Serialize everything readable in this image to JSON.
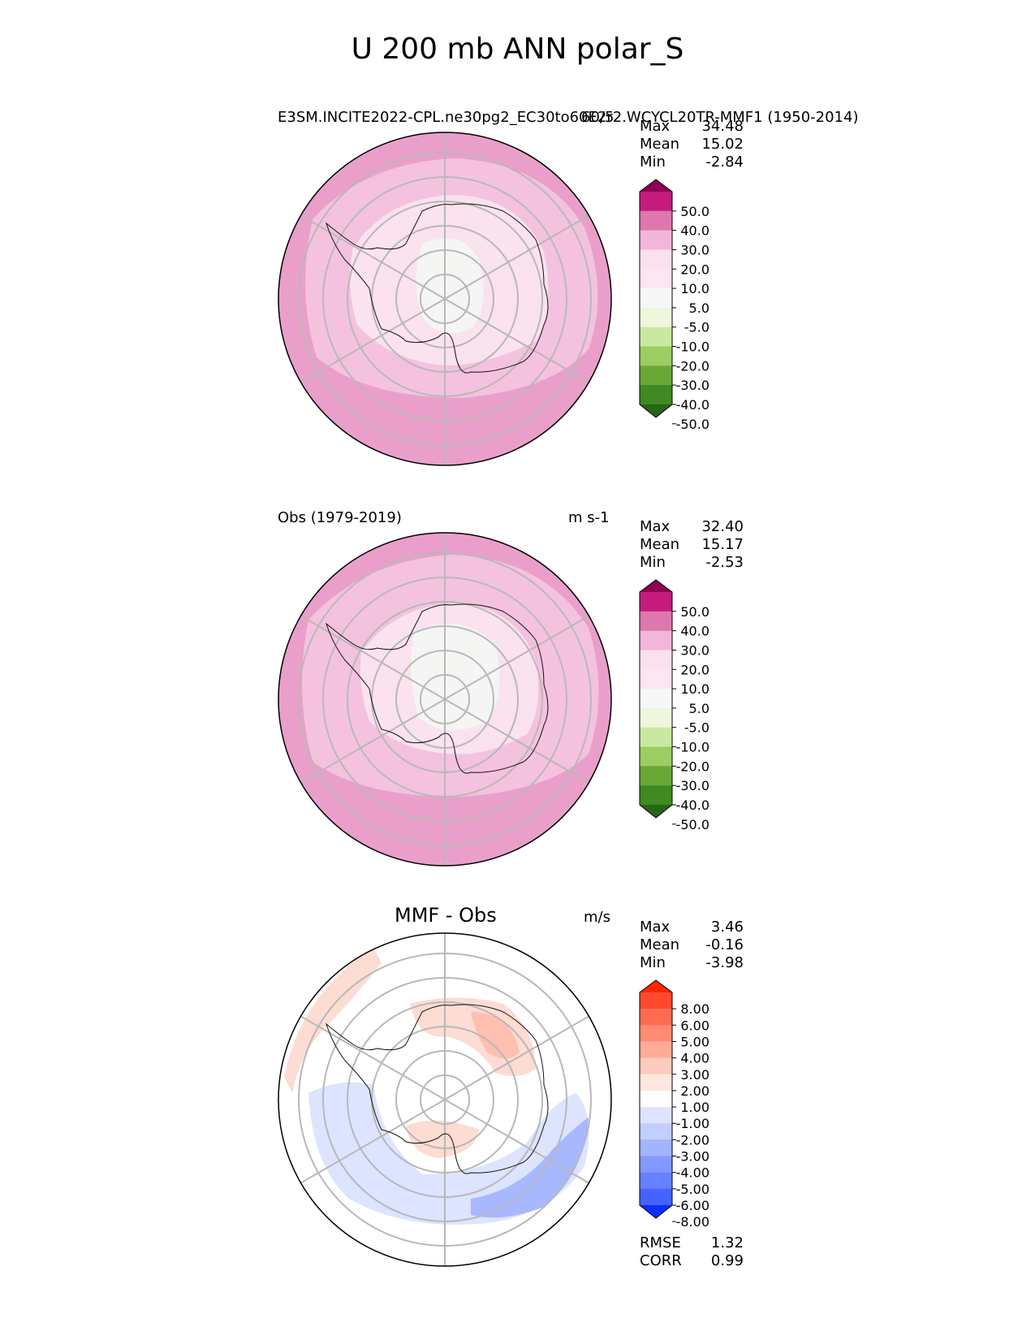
{
  "title": "U 200 mb ANN polar_S",
  "panels": [
    {
      "id": "model",
      "left_label": "E3SM.INCITE2022-CPL.ne30pg2_EC30to60E2r2.WCYCL20TR-MMF1 (1950-2014)",
      "right_label": "60/5",
      "stats": [
        {
          "label": "Max",
          "value": "34.48"
        },
        {
          "label": "Mean",
          "value": "15.02"
        },
        {
          "label": "Min",
          "value": "-2.84"
        }
      ]
    },
    {
      "id": "obs",
      "left_label": "Obs (1979-2019)",
      "right_label": "m s-1",
      "stats": [
        {
          "label": "Max",
          "value": "32.40"
        },
        {
          "label": "Mean",
          "value": "15.17"
        },
        {
          "label": "Min",
          "value": "-2.53"
        }
      ]
    },
    {
      "id": "diff",
      "center_label": "MMF - Obs",
      "right_label": "m/s",
      "stats": [
        {
          "label": "Max",
          "value": "3.46"
        },
        {
          "label": "Mean",
          "value": "-0.16"
        },
        {
          "label": "Min",
          "value": "-3.98"
        }
      ],
      "metrics": [
        {
          "label": "RMSE",
          "value": "1.32"
        },
        {
          "label": "CORR",
          "value": "0.99"
        }
      ]
    }
  ],
  "colorbars": {
    "field": {
      "ticks": [
        "50.0",
        "40.0",
        "30.0",
        "20.0",
        "10.0",
        "5.0",
        "-5.0",
        "-10.0",
        "-20.0",
        "-30.0",
        "-40.0",
        "-50.0"
      ],
      "colors": [
        "#8e0152",
        "#c51b7d",
        "#de77ae",
        "#f1b6da",
        "#fde0ef",
        "#fce7f1",
        "#f7f7f7",
        "#eef6dc",
        "#c9e8a0",
        "#9ccd62",
        "#6aa836",
        "#3f8a22",
        "#276419"
      ]
    },
    "diff": {
      "ticks": [
        "8.00",
        "6.00",
        "5.00",
        "4.00",
        "3.00",
        "2.00",
        "1.00",
        "-1.00",
        "-2.00",
        "-3.00",
        "-4.00",
        "-5.00",
        "-6.00",
        "-8.00"
      ],
      "colors": [
        "#ff2600",
        "#ff4a2e",
        "#ff6b4f",
        "#ff8b73",
        "#ffab98",
        "#ffcbbd",
        "#ffe6de",
        "#ffffff",
        "#dde4ff",
        "#c2ceff",
        "#a2b3ff",
        "#8499ff",
        "#6680ff",
        "#4463ff",
        "#0a2eff"
      ]
    }
  }
}
